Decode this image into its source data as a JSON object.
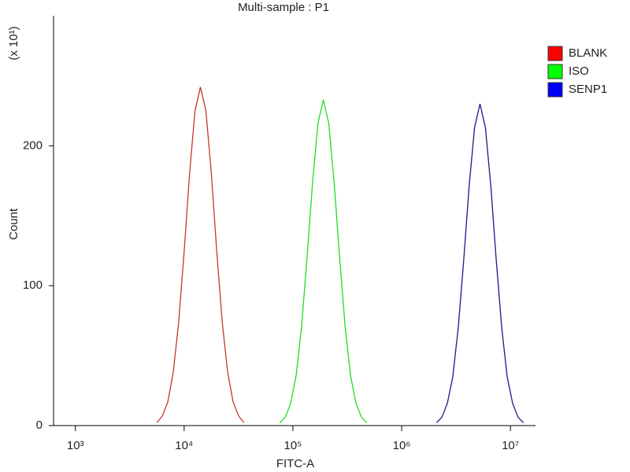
{
  "chart_data": {
    "type": "line",
    "title": "Multi-sample : P1",
    "x_label": "FITC-A",
    "y_label": "Count",
    "y_unit_label": "(x 10¹)",
    "x_log": true,
    "xlim": [
      630,
      17000000
    ],
    "xticks": [
      {
        "value": 1000,
        "label": "10³"
      },
      {
        "value": 10000,
        "label": "10⁴"
      },
      {
        "value": 100000,
        "label": "10⁵"
      },
      {
        "value": 1000000,
        "label": "10⁶"
      },
      {
        "value": 10000000,
        "label": "10⁷"
      }
    ],
    "ylim": [
      0,
      293
    ],
    "yticks": [
      0,
      100,
      200
    ],
    "legend": "right",
    "series": [
      {
        "name": "BLANK",
        "color": "#c0392b",
        "legend_color": "#ff0000",
        "x": [
          5623,
          6310,
          7079,
          7943,
          8913,
          10000,
          11220,
          12589,
          14125,
          15849,
          17783,
          19953,
          22387,
          25119,
          28184,
          31623,
          35481
        ],
        "values": [
          2,
          7,
          17,
          38,
          74,
          124,
          180,
          225,
          242,
          225,
          180,
          124,
          74,
          38,
          17,
          7,
          2
        ]
      },
      {
        "name": "ISO",
        "color": "#22dd22",
        "legend_color": "#00ff00",
        "x": [
          75858,
          85114,
          95499,
          107152,
          120226,
          134896,
          151356,
          169824,
          190546,
          213796,
          239883,
          269153,
          301995,
          338844,
          380189,
          426580,
          478630
        ],
        "values": [
          2,
          6,
          16,
          36,
          71,
          120,
          173,
          216,
          233,
          216,
          173,
          120,
          71,
          36,
          16,
          6,
          2
        ]
      },
      {
        "name": "SENP1",
        "color": "#1a1a8c",
        "legend_color": "#0000ff",
        "x": [
          2089296,
          2344229,
          2630268,
          2951209,
          3311311,
          3715352,
          4168694,
          4677351,
          5248075,
          5888437,
          6606934,
          7413102,
          8317638,
          9332543,
          10471285,
          11748976,
          13182567
        ],
        "values": [
          2,
          6,
          16,
          35,
          70,
          118,
          171,
          213,
          230,
          213,
          171,
          118,
          70,
          35,
          16,
          6,
          2
        ]
      }
    ]
  }
}
